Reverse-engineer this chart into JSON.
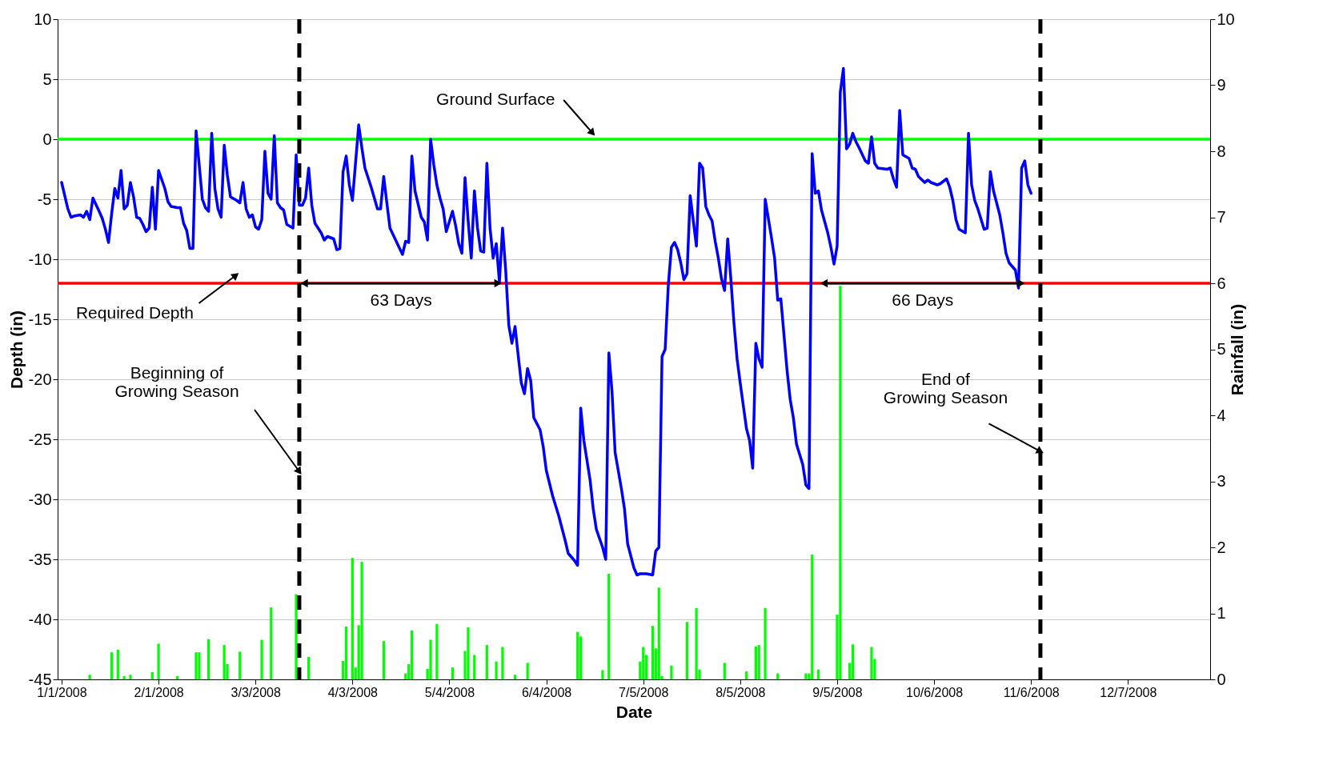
{
  "chart_data": {
    "type": "line",
    "xlabel": "Date",
    "ylabel": "Depth (in)",
    "y2label": "Rainfall (in)",
    "xlim": [
      "2008-01-01",
      "2009-01-01"
    ],
    "xticks": [
      {
        "value": "2008-01-01",
        "label": "1/1/2008"
      },
      {
        "value": "2008-02-01",
        "label": "2/1/2008"
      },
      {
        "value": "2008-03-03",
        "label": "3/3/2008"
      },
      {
        "value": "2008-04-03",
        "label": "4/3/2008"
      },
      {
        "value": "2008-05-04",
        "label": "5/4/2008"
      },
      {
        "value": "2008-06-04",
        "label": "6/4/2008"
      },
      {
        "value": "2008-07-05",
        "label": "7/5/2008"
      },
      {
        "value": "2008-08-05",
        "label": "8/5/2008"
      },
      {
        "value": "2008-09-05",
        "label": "9/5/2008"
      },
      {
        "value": "2008-10-06",
        "label": "10/6/2008"
      },
      {
        "value": "2008-11-06",
        "label": "11/6/2008"
      },
      {
        "value": "2008-12-07",
        "label": "12/7/2008"
      }
    ],
    "ylim": [
      -45,
      10
    ],
    "yticks": [
      -45,
      -40,
      -35,
      -30,
      -25,
      -20,
      -15,
      -10,
      -5,
      0,
      5,
      10
    ],
    "y2lim": [
      0,
      10
    ],
    "y2ticks": [
      0,
      1,
      2,
      3,
      4,
      5,
      6,
      7,
      8,
      9,
      10
    ],
    "grid": "y",
    "series": [
      {
        "type": "bar",
        "axis": "y2",
        "color": "#00ff00",
        "x": [
          "2008-01-10",
          "2008-01-17",
          "2008-01-19",
          "2008-01-21",
          "2008-01-23",
          "2008-01-30",
          "2008-02-01",
          "2008-02-07",
          "2008-02-13",
          "2008-02-14",
          "2008-02-17",
          "2008-02-22",
          "2008-02-23",
          "2008-02-27",
          "2008-03-05",
          "2008-03-08",
          "2008-03-16",
          "2008-03-20",
          "2008-03-31",
          "2008-04-01",
          "2008-04-03",
          "2008-04-04",
          "2008-04-05",
          "2008-04-06",
          "2008-04-13",
          "2008-04-20",
          "2008-04-21",
          "2008-04-22",
          "2008-04-27",
          "2008-04-28",
          "2008-04-30",
          "2008-05-05",
          "2008-05-09",
          "2008-05-10",
          "2008-05-12",
          "2008-05-16",
          "2008-05-19",
          "2008-05-21",
          "2008-05-25",
          "2008-05-29",
          "2008-06-14",
          "2008-06-15",
          "2008-06-22",
          "2008-06-24",
          "2008-07-04",
          "2008-07-05",
          "2008-07-06",
          "2008-07-08",
          "2008-07-09",
          "2008-07-10",
          "2008-07-11",
          "2008-07-14",
          "2008-07-19",
          "2008-07-22",
          "2008-07-23",
          "2008-07-31",
          "2008-08-07",
          "2008-08-10",
          "2008-08-11",
          "2008-08-13",
          "2008-08-17",
          "2008-08-26",
          "2008-08-27",
          "2008-08-28",
          "2008-08-30",
          "2008-09-05",
          "2008-09-06",
          "2008-09-09",
          "2008-09-10",
          "2008-09-16",
          "2008-09-17"
        ],
        "values": [
          0.07,
          0.41,
          0.45,
          0.05,
          0.07,
          0.11,
          0.54,
          0.05,
          0.41,
          0.41,
          0.61,
          0.52,
          0.23,
          0.42,
          0.6,
          1.09,
          1.29,
          0.34,
          0.28,
          0.8,
          1.84,
          0.18,
          0.82,
          1.78,
          0.58,
          0.09,
          0.23,
          0.74,
          0.16,
          0.6,
          0.84,
          0.18,
          0.43,
          0.79,
          0.37,
          0.52,
          0.27,
          0.49,
          0.07,
          0.25,
          0.72,
          0.65,
          0.14,
          1.6,
          0.27,
          0.49,
          0.37,
          0.81,
          0.47,
          1.39,
          0.05,
          0.21,
          0.87,
          1.08,
          0.15,
          0.25,
          0.12,
          0.5,
          0.52,
          1.08,
          0.09,
          0.09,
          0.09,
          1.89,
          0.15,
          0.98,
          5.96,
          0.25,
          0.53,
          0.49,
          0.31
        ]
      },
      {
        "color": "#0000ff",
        "x": [
          "2008-01-01",
          "2008-01-03",
          "2008-01-04",
          "2008-01-05",
          "2008-01-07",
          "2008-01-08",
          "2008-01-09",
          "2008-01-10",
          "2008-01-11",
          "2008-01-13",
          "2008-01-14",
          "2008-01-15",
          "2008-01-16",
          "2008-01-17",
          "2008-01-18",
          "2008-01-19",
          "2008-01-20",
          "2008-01-21",
          "2008-01-22",
          "2008-01-23",
          "2008-01-24",
          "2008-01-25",
          "2008-01-26",
          "2008-01-27",
          "2008-01-28",
          "2008-01-29",
          "2008-01-30",
          "2008-01-31",
          "2008-02-01",
          "2008-02-03",
          "2008-02-04",
          "2008-02-05",
          "2008-02-07",
          "2008-02-08",
          "2008-02-09",
          "2008-02-10",
          "2008-02-11",
          "2008-02-12",
          "2008-02-13",
          "2008-02-15",
          "2008-02-16",
          "2008-02-17",
          "2008-02-18",
          "2008-02-19",
          "2008-02-20",
          "2008-02-21",
          "2008-02-22",
          "2008-02-23",
          "2008-02-24",
          "2008-02-26",
          "2008-02-27",
          "2008-02-28",
          "2008-02-29",
          "2008-03-01",
          "2008-03-02",
          "2008-03-03",
          "2008-03-04",
          "2008-03-05",
          "2008-03-06",
          "2008-03-07",
          "2008-03-08",
          "2008-03-09",
          "2008-03-10",
          "2008-03-11",
          "2008-03-12",
          "2008-03-13",
          "2008-03-15",
          "2008-03-16",
          "2008-03-17",
          "2008-03-18",
          "2008-03-19",
          "2008-03-20",
          "2008-03-21",
          "2008-03-22",
          "2008-03-24",
          "2008-03-25",
          "2008-03-26",
          "2008-03-28",
          "2008-03-29",
          "2008-03-30",
          "2008-03-31",
          "2008-04-01",
          "2008-04-02",
          "2008-04-03",
          "2008-04-05",
          "2008-04-06",
          "2008-04-07",
          "2008-04-09",
          "2008-04-11",
          "2008-04-12",
          "2008-04-13",
          "2008-04-14",
          "2008-04-15",
          "2008-04-17",
          "2008-04-19",
          "2008-04-20",
          "2008-04-21",
          "2008-04-22",
          "2008-04-23",
          "2008-04-25",
          "2008-04-26",
          "2008-04-27",
          "2008-04-28",
          "2008-04-29",
          "2008-04-30",
          "2008-05-01",
          "2008-05-02",
          "2008-05-03",
          "2008-05-05",
          "2008-05-06",
          "2008-05-07",
          "2008-05-08",
          "2008-05-09",
          "2008-05-10",
          "2008-05-11",
          "2008-05-12",
          "2008-05-13",
          "2008-05-14",
          "2008-05-15",
          "2008-05-16",
          "2008-05-17",
          "2008-05-18",
          "2008-05-19",
          "2008-05-20",
          "2008-05-21",
          "2008-05-22",
          "2008-05-23",
          "2008-05-24",
          "2008-05-25",
          "2008-05-26",
          "2008-05-27",
          "2008-05-28",
          "2008-05-29",
          "2008-05-30",
          "2008-05-31",
          "2008-06-02",
          "2008-06-03",
          "2008-06-04",
          "2008-06-06",
          "2008-06-08",
          "2008-06-10",
          "2008-06-11",
          "2008-06-13",
          "2008-06-14",
          "2008-06-15",
          "2008-06-16",
          "2008-06-18",
          "2008-06-19",
          "2008-06-20",
          "2008-06-22",
          "2008-06-23",
          "2008-06-24",
          "2008-06-25",
          "2008-06-26",
          "2008-06-28",
          "2008-06-29",
          "2008-06-30",
          "2008-07-02",
          "2008-07-03",
          "2008-07-04",
          "2008-07-06",
          "2008-07-08",
          "2008-07-09",
          "2008-07-10",
          "2008-07-11",
          "2008-07-12",
          "2008-07-13",
          "2008-07-14",
          "2008-07-15",
          "2008-07-16",
          "2008-07-17",
          "2008-07-18",
          "2008-07-19",
          "2008-07-20",
          "2008-07-21",
          "2008-07-22",
          "2008-07-23",
          "2008-07-24",
          "2008-07-25",
          "2008-07-26",
          "2008-07-27",
          "2008-07-28",
          "2008-07-29",
          "2008-07-30",
          "2008-07-31",
          "2008-08-01",
          "2008-08-02",
          "2008-08-03",
          "2008-08-04",
          "2008-08-05",
          "2008-08-07",
          "2008-08-08",
          "2008-08-09",
          "2008-08-10",
          "2008-08-11",
          "2008-08-12",
          "2008-08-13",
          "2008-08-15",
          "2008-08-16",
          "2008-08-17",
          "2008-08-18",
          "2008-08-19",
          "2008-08-20",
          "2008-08-21",
          "2008-08-22",
          "2008-08-23",
          "2008-08-25",
          "2008-08-26",
          "2008-08-27",
          "2008-08-28",
          "2008-08-29",
          "2008-08-30",
          "2008-08-31",
          "2008-09-02",
          "2008-09-03",
          "2008-09-04",
          "2008-09-05",
          "2008-09-06",
          "2008-09-07",
          "2008-09-08",
          "2008-09-09",
          "2008-09-10",
          "2008-09-11",
          "2008-09-12",
          "2008-09-14",
          "2008-09-15",
          "2008-09-16",
          "2008-09-17",
          "2008-09-18",
          "2008-09-21",
          "2008-09-22",
          "2008-09-23",
          "2008-09-24",
          "2008-09-25",
          "2008-09-26",
          "2008-09-28",
          "2008-09-29",
          "2008-09-30",
          "2008-10-01",
          "2008-10-03",
          "2008-10-04",
          "2008-10-05",
          "2008-10-07",
          "2008-10-08",
          "2008-10-10",
          "2008-10-11",
          "2008-10-12",
          "2008-10-13",
          "2008-10-14",
          "2008-10-16",
          "2008-10-17",
          "2008-10-18",
          "2008-10-19",
          "2008-10-20",
          "2008-10-22",
          "2008-10-23",
          "2008-10-24",
          "2008-10-25",
          "2008-10-27",
          "2008-10-28",
          "2008-10-29",
          "2008-10-30",
          "2008-11-01",
          "2008-11-02",
          "2008-11-03",
          "2008-11-04",
          "2008-11-05",
          "2008-11-06"
        ],
        "values": [
          -3.6,
          -5.8,
          -6.5,
          -6.4,
          -6.3,
          -6.5,
          -6.0,
          -6.7,
          -4.9,
          -6.0,
          -6.6,
          -7.5,
          -8.6,
          -6.2,
          -4.1,
          -4.9,
          -2.6,
          -5.8,
          -5.5,
          -3.6,
          -4.8,
          -6.5,
          -6.6,
          -7.1,
          -7.7,
          -7.4,
          -4.0,
          -7.5,
          -2.6,
          -4.1,
          -5.2,
          -5.6,
          -5.7,
          -5.7,
          -7.0,
          -7.6,
          -9.1,
          -9.1,
          0.7,
          -5.0,
          -5.7,
          -6.0,
          0.5,
          -4.1,
          -5.8,
          -6.5,
          -0.5,
          -3.0,
          -4.8,
          -5.1,
          -5.3,
          -3.6,
          -5.8,
          -6.5,
          -6.3,
          -7.3,
          -7.5,
          -6.7,
          -1.0,
          -4.5,
          -5.0,
          0.3,
          -5.3,
          -5.7,
          -5.9,
          -7.1,
          -7.4,
          -1.3,
          -5.5,
          -5.5,
          -4.9,
          -2.4,
          -5.5,
          -7.0,
          -7.8,
          -8.4,
          -8.1,
          -8.3,
          -9.2,
          -9.1,
          -2.7,
          -1.4,
          -3.8,
          -5.1,
          1.2,
          -0.7,
          -2.4,
          -4.0,
          -5.8,
          -5.8,
          -3.1,
          -5.3,
          -7.4,
          -8.5,
          -9.6,
          -8.5,
          -8.6,
          -1.4,
          -4.3,
          -6.5,
          -6.9,
          -8.4,
          0.0,
          -2.1,
          -3.8,
          -4.9,
          -5.8,
          -7.7,
          -6.0,
          -7.2,
          -8.7,
          -9.5,
          -3.2,
          -6.8,
          -9.9,
          -4.3,
          -7.4,
          -9.3,
          -9.4,
          -2.0,
          -7.4,
          -9.9,
          -8.7,
          -11.9,
          -7.4,
          -10.9,
          -15.5,
          -17.0,
          -15.6,
          -18.0,
          -20.3,
          -21.2,
          -19.1,
          -20.1,
          -23.2,
          -24.2,
          -25.6,
          -27.6,
          -29.7,
          -31.4,
          -33.4,
          -34.5,
          -35.1,
          -35.5,
          -22.4,
          -25.1,
          -28.4,
          -30.8,
          -32.5,
          -34.0,
          -35.0,
          -17.8,
          -21.0,
          -26.1,
          -29.1,
          -30.8,
          -33.7,
          -35.7,
          -36.3,
          -36.2,
          -36.2,
          -36.3,
          -34.3,
          -34.0,
          -18.1,
          -17.5,
          -12.2,
          -9.0,
          -8.6,
          -9.2,
          -10.3,
          -11.7,
          -11.2,
          -4.7,
          -6.8,
          -8.9,
          -2.0,
          -2.4,
          -5.6,
          -6.3,
          -6.8,
          -8.5,
          -9.9,
          -11.6,
          -12.6,
          -8.3,
          -11.6,
          -15.3,
          -18.3,
          -20.3,
          -24.1,
          -25.1,
          -27.4,
          -17.0,
          -18.3,
          -19.0,
          -5.0,
          -8.2,
          -9.9,
          -13.4,
          -13.3,
          -16.3,
          -19.3,
          -21.7,
          -23.2,
          -25.4,
          -27.1,
          -28.8,
          -29.1,
          -1.2,
          -4.5,
          -4.3,
          -5.9,
          -7.8,
          -9.0,
          -10.4,
          -8.9,
          3.9,
          5.9,
          -0.8,
          -0.4,
          0.5,
          -0.2,
          -0.7,
          -1.8,
          -2.0,
          0.2,
          -2.0,
          -2.4,
          -2.5,
          -2.4,
          -3.3,
          -4.0,
          2.4,
          -1.3,
          -1.6,
          -2.4,
          -2.5,
          -3.1,
          -3.6,
          -3.4,
          -3.6,
          -3.8,
          -3.7,
          -3.3,
          -4.0,
          -5.1,
          -6.7,
          -7.5,
          -7.8,
          0.5,
          -3.8,
          -5.1,
          -5.8,
          -7.5,
          -7.4,
          -2.7,
          -4.3,
          -6.3,
          -7.8,
          -9.5,
          -10.3,
          -10.9,
          -12.4,
          -2.4,
          -1.8,
          -3.8,
          -4.5
        ]
      }
    ],
    "ref_lines": [
      {
        "axis": "y",
        "value": 0,
        "color": "#00ff00",
        "label": "Ground Surface"
      },
      {
        "axis": "y",
        "value": -12,
        "color": "#ff0000",
        "label": "Required Depth"
      },
      {
        "axis": "x",
        "value": "2008-03-17",
        "color": "#000000",
        "line_style": "dashed",
        "label": "Beginning of\nGrowing Season"
      },
      {
        "axis": "x",
        "value": "2008-11-09",
        "color": "#000000",
        "line_style": "dashed",
        "label": "End of\nGrowing Season"
      }
    ],
    "annotations": [
      "63 Days",
      "66 Days"
    ]
  }
}
